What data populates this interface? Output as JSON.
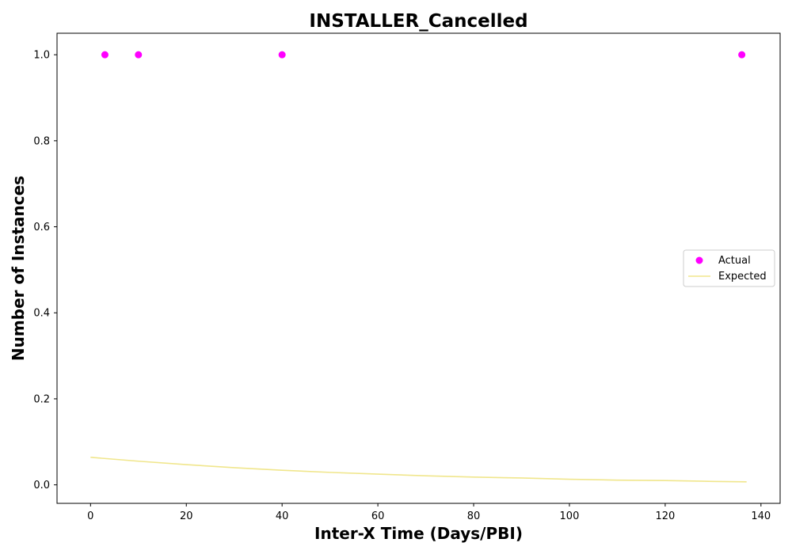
{
  "chart_data": {
    "type": "scatter",
    "title": "INSTALLER_Cancelled",
    "xlabel": "Inter-X Time (Days/PBI)",
    "ylabel": "Number of Instances",
    "xlim": [
      -7,
      144
    ],
    "ylim": [
      -0.043,
      1.05
    ],
    "xticks": [
      0,
      20,
      40,
      60,
      80,
      100,
      120,
      140
    ],
    "yticks": [
      0.0,
      0.2,
      0.4,
      0.6,
      0.8,
      1.0
    ],
    "xtick_labels": [
      "0",
      "20",
      "40",
      "60",
      "80",
      "100",
      "120",
      "140"
    ],
    "ytick_labels": [
      "0.0",
      "0.2",
      "0.4",
      "0.6",
      "0.8",
      "1.0"
    ],
    "grid": false,
    "legend_position": "center-right",
    "series": [
      {
        "name": "Actual",
        "kind": "scatter",
        "color": "#ff00ff",
        "x": [
          3,
          10,
          40,
          136
        ],
        "y": [
          1.0,
          1.0,
          1.0,
          1.0
        ]
      },
      {
        "name": "Expected",
        "kind": "line",
        "color": "#f0e68c",
        "x": [
          0,
          10,
          20,
          30,
          40,
          50,
          60,
          70,
          80,
          90,
          100,
          110,
          120,
          130,
          137
        ],
        "y": [
          0.064,
          0.055,
          0.047,
          0.04,
          0.034,
          0.029,
          0.025,
          0.021,
          0.018,
          0.016,
          0.013,
          0.011,
          0.01,
          0.008,
          0.007
        ]
      }
    ]
  }
}
